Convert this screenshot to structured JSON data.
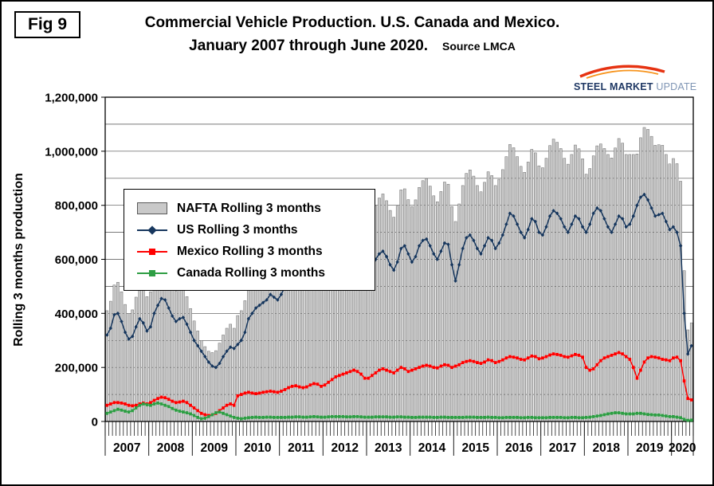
{
  "fig_label": "Fig 9",
  "header": {
    "title_line1": "Commercial Vehicle Production. U.S. Canada and Mexico.",
    "title_line2": "January 2007 through June 2020.",
    "source": "Source LMCA"
  },
  "logo": {
    "word1": "STEEL",
    "word2": "MARKET",
    "word3": "UPDATE"
  },
  "y_axis_title": "Rolling 3 months production",
  "chart_data": {
    "type": "bar",
    "title": "Commercial Vehicle Production. U.S. Canada and Mexico. January 2007 through June 2020.",
    "source": "Source LMCA",
    "ylabel": "Rolling 3 months production",
    "x_frequency": "monthly",
    "x_start": "2007-01",
    "x_end": "2020-06",
    "years": [
      2007,
      2008,
      2009,
      2010,
      2011,
      2012,
      2013,
      2014,
      2015,
      2016,
      2017,
      2018,
      2019,
      2020
    ],
    "ylim": [
      0,
      1200000
    ],
    "ytick_step": 200000,
    "grid_step": 100000,
    "ytick_labels": [
      "0",
      "200,000",
      "400,000",
      "600,000",
      "800,000",
      "1,000,000",
      "1,200,000"
    ],
    "grid": true,
    "legend_position": "top-left-inside",
    "legend": [
      "NAFTA Rolling 3 months",
      "US Rolling 3 months",
      "Mexico Rolling 3 months",
      "Canada Rolling 3 months"
    ],
    "colors": {
      "nafta_bar": "#c9c9c9",
      "bar_border": "#6b6b6b",
      "us": "#17375E",
      "mexico": "#FF0000",
      "canada": "#2E9E44"
    },
    "series": [
      {
        "name": "NAFTA Rolling 3 months",
        "type": "bar",
        "values": [
          410000,
          445000,
          505000,
          515000,
          480000,
          433000,
          400000,
          413000,
          460000,
          505000,
          498000,
          462000,
          480000,
          543000,
          583000,
          610000,
          598000,
          557000,
          513000,
          482000,
          490000,
          495000,
          462000,
          418000,
          372000,
          335000,
          300000,
          277000,
          260000,
          255000,
          262000,
          290000,
          320000,
          345000,
          360000,
          345000,
          392000,
          410000,
          447000,
          502000,
          520000,
          539000,
          550000,
          563000,
          576000,
          598000,
          585000,
          573000,
          597000,
          633000,
          671000,
          696000,
          689000,
          655000,
          631000,
          654000,
          692000,
          718000,
          710000,
          676000,
          696000,
          727000,
          753000,
          768000,
          763000,
          753000,
          737000,
          732000,
          753000,
          763000,
          737000,
          696000,
          716000,
          746000,
          797000,
          827000,
          842000,
          817000,
          781000,
          756000,
          797000,
          857000,
          861000,
          821000,
          795000,
          820000,
          866000,
          891000,
          899000,
          871000,
          835000,
          813000,
          851000,
          886000,
          878000,
          795000,
          740000,
          805000,
          873000,
          918000,
          931000,
          908000,
          873000,
          850000,
          885000,
          924000,
          910000,
          873000,
          896000,
          932000,
          980000,
          1025000,
          1013000,
          980000,
          944000,
          922000,
          960000,
          1007000,
          994000,
          946000,
          939000,
          974000,
          1021000,
          1045000,
          1033000,
          1010000,
          974000,
          952000,
          988000,
          1023000,
          1009000,
          972000,
          915000,
          936000,
          983000,
          1020000,
          1027000,
          1010000,
          988000,
          975000,
          1012000,
          1047000,
          1030000,
          988000,
          988000,
          988000,
          990000,
          1050000,
          1088000,
          1081000,
          1055000,
          1022000,
          1024000,
          1022000,
          988000,
          953000,
          973000,
          954000,
          889000,
          558000,
          339000,
          365000
        ]
      },
      {
        "name": "US Rolling 3 months",
        "type": "line",
        "marker": "diamond",
        "values": [
          320000,
          345000,
          395000,
          400000,
          370000,
          330000,
          305000,
          315000,
          350000,
          380000,
          365000,
          335000,
          350000,
          400000,
          430000,
          455000,
          450000,
          420000,
          390000,
          370000,
          380000,
          385000,
          360000,
          330000,
          300000,
          280000,
          260000,
          240000,
          220000,
          205000,
          200000,
          215000,
          240000,
          260000,
          275000,
          270000,
          285000,
          300000,
          330000,
          380000,
          400000,
          420000,
          430000,
          440000,
          450000,
          470000,
          460000,
          450000,
          470000,
          500000,
          530000,
          550000,
          540000,
          510000,
          490000,
          510000,
          540000,
          560000,
          555000,
          530000,
          545000,
          565000,
          580000,
          585000,
          575000,
          560000,
          540000,
          530000,
          545000,
          560000,
          545000,
          520000,
          540000,
          560000,
          600000,
          620000,
          630000,
          610000,
          580000,
          560000,
          590000,
          640000,
          650000,
          620000,
          590000,
          610000,
          650000,
          670000,
          675000,
          650000,
          620000,
          600000,
          630000,
          660000,
          655000,
          580000,
          520000,
          580000,
          640000,
          680000,
          690000,
          670000,
          640000,
          620000,
          650000,
          680000,
          670000,
          640000,
          660000,
          690000,
          730000,
          770000,
          760000,
          730000,
          700000,
          680000,
          710000,
          750000,
          740000,
          700000,
          690000,
          720000,
          760000,
          780000,
          770000,
          750000,
          720000,
          700000,
          730000,
          760000,
          750000,
          720000,
          700000,
          730000,
          770000,
          790000,
          780000,
          750000,
          720000,
          700000,
          730000,
          760000,
          750000,
          720000,
          730000,
          760000,
          800000,
          830000,
          840000,
          820000,
          790000,
          760000,
          765000,
          770000,
          740000,
          710000,
          720000,
          700000,
          650000,
          400000,
          250000,
          280000
        ]
      },
      {
        "name": "Mexico Rolling 3 months",
        "type": "line",
        "marker": "square",
        "values": [
          60000,
          65000,
          70000,
          70000,
          68000,
          65000,
          60000,
          58000,
          60000,
          65000,
          68000,
          65000,
          70000,
          78000,
          85000,
          90000,
          88000,
          82000,
          75000,
          70000,
          72000,
          75000,
          70000,
          60000,
          50000,
          40000,
          30000,
          25000,
          22000,
          25000,
          30000,
          40000,
          50000,
          60000,
          65000,
          60000,
          95000,
          100000,
          105000,
          108000,
          105000,
          103000,
          105000,
          108000,
          110000,
          112000,
          110000,
          108000,
          112000,
          118000,
          125000,
          130000,
          132000,
          128000,
          125000,
          128000,
          135000,
          140000,
          138000,
          130000,
          135000,
          145000,
          155000,
          165000,
          170000,
          175000,
          180000,
          185000,
          190000,
          185000,
          175000,
          160000,
          160000,
          170000,
          180000,
          190000,
          195000,
          190000,
          185000,
          180000,
          190000,
          200000,
          195000,
          185000,
          190000,
          195000,
          200000,
          205000,
          208000,
          205000,
          200000,
          198000,
          205000,
          210000,
          208000,
          200000,
          205000,
          210000,
          218000,
          222000,
          225000,
          222000,
          218000,
          215000,
          220000,
          228000,
          225000,
          218000,
          222000,
          228000,
          235000,
          240000,
          238000,
          235000,
          230000,
          228000,
          235000,
          242000,
          240000,
          232000,
          235000,
          240000,
          246000,
          250000,
          248000,
          245000,
          240000,
          238000,
          243000,
          248000,
          245000,
          238000,
          200000,
          190000,
          195000,
          210000,
          225000,
          235000,
          240000,
          245000,
          250000,
          255000,
          250000,
          240000,
          230000,
          200000,
          160000,
          190000,
          220000,
          235000,
          240000,
          238000,
          235000,
          230000,
          228000,
          225000,
          235000,
          238000,
          225000,
          150000,
          85000,
          80000
        ]
      },
      {
        "name": "Canada Rolling 3 months",
        "type": "line",
        "marker": "square",
        "values": [
          30000,
          35000,
          40000,
          45000,
          42000,
          38000,
          35000,
          40000,
          50000,
          60000,
          65000,
          62000,
          60000,
          65000,
          68000,
          65000,
          60000,
          55000,
          48000,
          42000,
          38000,
          35000,
          32000,
          28000,
          22000,
          15000,
          10000,
          12000,
          18000,
          25000,
          32000,
          35000,
          30000,
          25000,
          20000,
          15000,
          12000,
          10000,
          12000,
          14000,
          15000,
          16000,
          15000,
          15000,
          16000,
          16000,
          15000,
          15000,
          15000,
          15000,
          16000,
          16000,
          17000,
          17000,
          16000,
          16000,
          17000,
          18000,
          17000,
          16000,
          16000,
          17000,
          18000,
          18000,
          18000,
          18000,
          17000,
          17000,
          18000,
          18000,
          17000,
          16000,
          16000,
          16000,
          17000,
          17000,
          17000,
          17000,
          16000,
          16000,
          17000,
          17000,
          16000,
          16000,
          15000,
          15000,
          16000,
          16000,
          16000,
          16000,
          15000,
          15000,
          16000,
          16000,
          15000,
          15000,
          15000,
          15000,
          15000,
          16000,
          16000,
          16000,
          15000,
          15000,
          15000,
          16000,
          15000,
          15000,
          14000,
          14000,
          15000,
          15000,
          15000,
          15000,
          14000,
          14000,
          15000,
          15000,
          14000,
          14000,
          14000,
          14000,
          15000,
          15000,
          15000,
          15000,
          14000,
          14000,
          15000,
          15000,
          14000,
          14000,
          15000,
          16000,
          18000,
          20000,
          22000,
          25000,
          28000,
          30000,
          32000,
          32000,
          30000,
          28000,
          28000,
          28000,
          30000,
          30000,
          28000,
          26000,
          25000,
          24000,
          24000,
          22000,
          20000,
          18000,
          18000,
          16000,
          14000,
          8000,
          4000,
          5000
        ]
      }
    ]
  }
}
